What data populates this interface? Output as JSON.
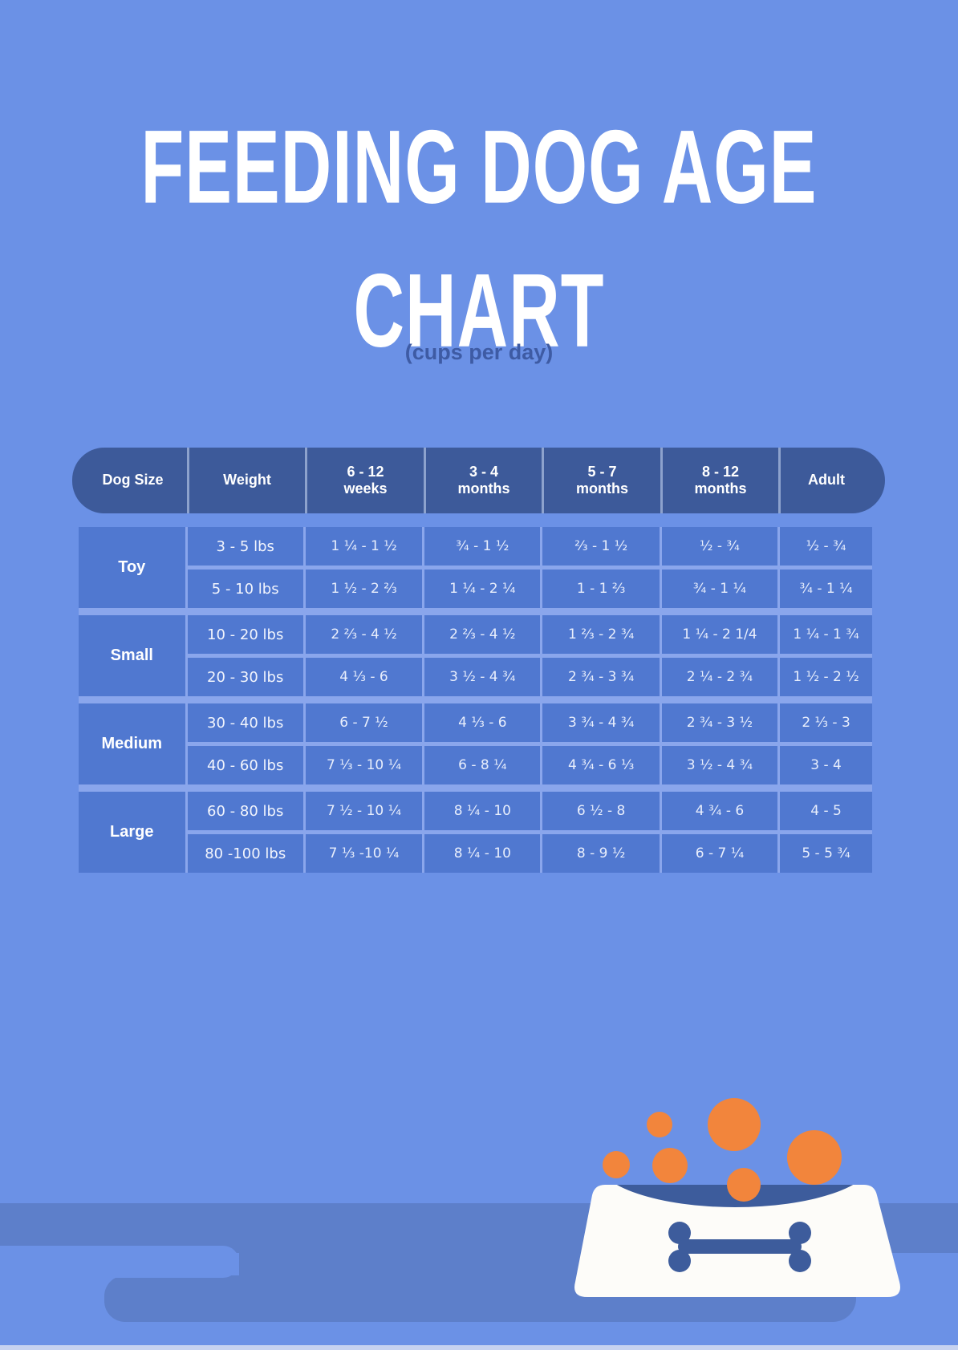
{
  "title": {
    "line1": "FEEDING DOG AGE",
    "line2": "CHART",
    "subtitle": "(cups per day)"
  },
  "table": {
    "headers": [
      "Dog Size",
      "Weight",
      "6 - 12\nweeks",
      "3 - 4\nmonths",
      "5 - 7\nmonths",
      "8 - 12\nmonths",
      "Adult"
    ],
    "groups": [
      {
        "size": "Toy",
        "rows": [
          [
            "3 - 5 lbs",
            "1 ¼ - 1 ½",
            "¾ - 1 ½",
            "⅔ - 1 ½",
            "½ - ¾",
            "½ - ¾"
          ],
          [
            "5 - 10 lbs",
            "1 ½ - 2 ⅔",
            "1 ¼ - 2 ¼",
            "1 - 1 ⅔",
            "¾ - 1 ¼",
            "¾ - 1 ¼"
          ]
        ]
      },
      {
        "size": "Small",
        "rows": [
          [
            "10 - 20 lbs",
            "2 ⅔ - 4 ½",
            "2 ⅔ - 4 ½",
            "1 ⅔ - 2 ¾",
            "1 ¼ - 2 1/4",
            "1 ¼ - 1 ¾"
          ],
          [
            "20 - 30 lbs",
            "4 ⅓ - 6",
            "3 ½ - 4 ¾",
            "2 ¾ - 3 ¾",
            "2 ¼ - 2 ¾",
            "1 ½ - 2 ½"
          ]
        ]
      },
      {
        "size": "Medium",
        "rows": [
          [
            "30 - 40 lbs",
            "6 - 7 ½",
            "4 ⅓ - 6",
            "3 ¾ - 4 ¾",
            "2 ¾ - 3 ½",
            "2 ⅓ - 3"
          ],
          [
            "40 - 60 lbs",
            "7 ⅓ - 10 ¼",
            "6 - 8 ¼",
            "4 ¾ - 6 ⅓",
            "3 ½ - 4 ¾",
            "3 - 4"
          ]
        ]
      },
      {
        "size": "Large",
        "rows": [
          [
            "60 - 80 lbs",
            "7 ½ - 10 ¼",
            "8 ¼ - 10",
            "6 ½ - 8",
            "4 ¾ - 6",
            "4 - 5"
          ],
          [
            "80 -100 lbs",
            "7 ⅓ -10 ¼",
            "8 ¼ - 10",
            "8 - 9 ½",
            "6 - 7 ¼",
            "5 - 5 ¾"
          ]
        ]
      }
    ]
  },
  "chart_data": {
    "type": "table",
    "title": "FEEDING DOG AGE CHART",
    "subtitle": "(cups per day)",
    "columns": [
      "Dog Size",
      "Weight",
      "6 - 12 weeks",
      "3 - 4 months",
      "5 - 7 months",
      "8 - 12 months",
      "Adult"
    ],
    "rows": [
      [
        "Toy",
        "3 - 5 lbs",
        "1 ¼ - 1 ½",
        "¾ - 1 ½",
        "⅔ - 1 ½",
        "½ - ¾",
        "½ - ¾"
      ],
      [
        "Toy",
        "5 - 10 lbs",
        "1 ½ - 2 ⅔",
        "1 ¼ - 2 ¼",
        "1 - 1 ⅔",
        "¾ - 1 ¼",
        "¾ - 1 ¼"
      ],
      [
        "Small",
        "10 - 20 lbs",
        "2 ⅔ - 4 ½",
        "2 ⅔ - 4 ½",
        "1 ⅔ - 2 ¾",
        "1 ¼ - 2 1/4",
        "1 ¼ - 1 ¾"
      ],
      [
        "Small",
        "20 - 30 lbs",
        "4 ⅓ - 6",
        "3 ½ - 4 ¾",
        "2 ¾ - 3 ¾",
        "2 ¼ - 2 ¾",
        "1 ½ - 2 ½"
      ],
      [
        "Medium",
        "30 - 40 lbs",
        "6 - 7 ½",
        "4 ⅓ - 6",
        "3 ¾ - 4 ¾",
        "2 ¾ - 3 ½",
        "2 ⅓ - 3"
      ],
      [
        "Medium",
        "40 - 60 lbs",
        "7 ⅓ - 10 ¼",
        "6 - 8 ¼",
        "4 ¾ - 6 ⅓",
        "3 ½ - 4 ¾",
        "3 - 4"
      ],
      [
        "Large",
        "60 - 80 lbs",
        "7 ½ - 10 ¼",
        "8 ¼ - 10",
        "6 ½ - 8",
        "4 ¾ - 6",
        "4 - 5"
      ],
      [
        "Large",
        "80 -100 lbs",
        "7 ⅓ -10 ¼",
        "8 ¼ - 10",
        "8 - 9 ½",
        "6 - 7 ¼",
        "5 - 5 ¾"
      ]
    ],
    "legend": null,
    "grid": true
  },
  "illustration": {
    "name": "dog-bowl-with-bone-and-kibble",
    "kibble_count": 6
  },
  "theme": {
    "bg": "#6b91e6",
    "header": "#3d5a9a",
    "cell": "#5078d0",
    "divider": "#8aa6ec",
    "titlecol": "#ffffff",
    "subtitle": "#3e5ba4",
    "orange": "#f2853c",
    "navy": "#3d5c9c",
    "bowl": "#fdfcf9",
    "band": "#5d7fca",
    "strip": "#c6d2f0"
  }
}
